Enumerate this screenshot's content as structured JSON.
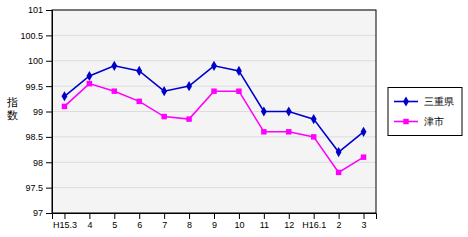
{
  "chart_data": {
    "type": "line",
    "ylabel": "指数",
    "categories": [
      "H15.3",
      "4",
      "5",
      "6",
      "7",
      "8",
      "9",
      "10",
      "11",
      "12",
      "H16.1",
      "2",
      "3"
    ],
    "series": [
      {
        "name": "三重県",
        "color": "#0000CD",
        "marker": "diamond",
        "values": [
          99.3,
          99.7,
          99.9,
          99.8,
          99.4,
          99.5,
          99.9,
          99.8,
          99.0,
          99.0,
          98.85,
          98.2,
          98.6
        ]
      },
      {
        "name": "津市",
        "color": "#FF00FF",
        "marker": "square",
        "values": [
          99.1,
          99.55,
          99.4,
          99.2,
          98.9,
          98.85,
          99.4,
          99.4,
          98.6,
          98.6,
          98.5,
          97.8,
          98.1
        ]
      }
    ],
    "ylim": [
      97,
      101
    ],
    "yticks": [
      97,
      97.5,
      98,
      98.5,
      99,
      99.5,
      100,
      100.5,
      101
    ],
    "grid": true,
    "legend": "right"
  }
}
